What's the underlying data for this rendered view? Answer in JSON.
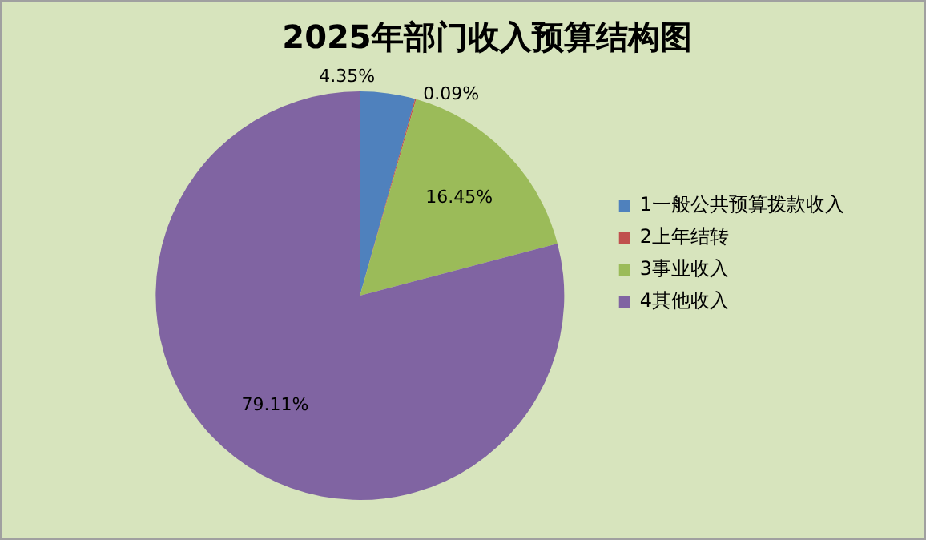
{
  "chart_data": {
    "type": "pie",
    "title": "2025年部门收入预算结构图",
    "categories": [
      "1一般公共预算拨款收入",
      "2上年结转",
      "3事业收入",
      "4其他收入"
    ],
    "values": [
      4.35,
      0.09,
      16.45,
      79.11
    ],
    "colors": [
      "#4f81bd",
      "#c0504d",
      "#9bbb59",
      "#8064a2"
    ],
    "value_labels": [
      "4.35%",
      "0.09%",
      "16.45%",
      "79.11%"
    ],
    "legend": "right"
  }
}
